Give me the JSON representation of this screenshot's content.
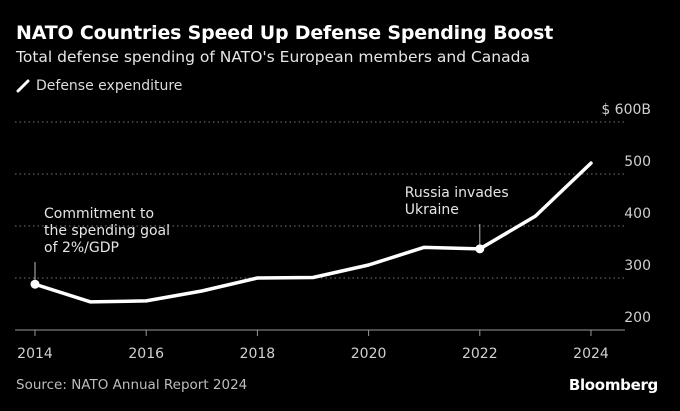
{
  "header": {
    "title": "NATO Countries Speed Up Defense Spending Boost",
    "subtitle": "Total defense spending of NATO's European members and Canada"
  },
  "legend": {
    "items": [
      {
        "label": "Defense expenditure",
        "icon": "line-swatch-icon",
        "color": "#ffffff"
      }
    ]
  },
  "footer": {
    "source": "Source: NATO Annual Report 2024",
    "brand": "Bloomberg"
  },
  "chart_data": {
    "type": "line",
    "title": "NATO Countries Speed Up Defense Spending Boost",
    "subtitle": "Total defense spending of NATO's European members and Canada",
    "xlabel": "",
    "ylabel": "",
    "x": [
      2014,
      2015,
      2016,
      2017,
      2018,
      2019,
      2020,
      2021,
      2022,
      2023,
      2024
    ],
    "series": [
      {
        "name": "Defense expenditure",
        "color": "#ffffff",
        "values": [
          288,
          254,
          256,
          275,
          300,
          301,
          325,
          359,
          356,
          419,
          521
        ]
      }
    ],
    "xlim": [
      2014,
      2024
    ],
    "ylim": [
      200,
      600
    ],
    "x_ticks": [
      2014,
      2016,
      2018,
      2020,
      2022,
      2024
    ],
    "x_tick_labels": [
      "2014",
      "2016",
      "2018",
      "2020",
      "2022",
      "2024"
    ],
    "y_ticks": [
      200,
      300,
      400,
      500,
      600
    ],
    "y_tick_labels": [
      "200",
      "300",
      "400",
      "500",
      "$ 600B"
    ],
    "y_axis_side": "right",
    "grid": true,
    "legend_position": "top-left",
    "annotations": [
      {
        "x": 2014,
        "lines": [
          "Commitment to",
          "the spending goal",
          "of 2%/GDP"
        ]
      },
      {
        "x": 2022,
        "lines": [
          "Russia invades",
          "Ukraine"
        ]
      }
    ],
    "source": "Source: NATO Annual Report 2024"
  }
}
